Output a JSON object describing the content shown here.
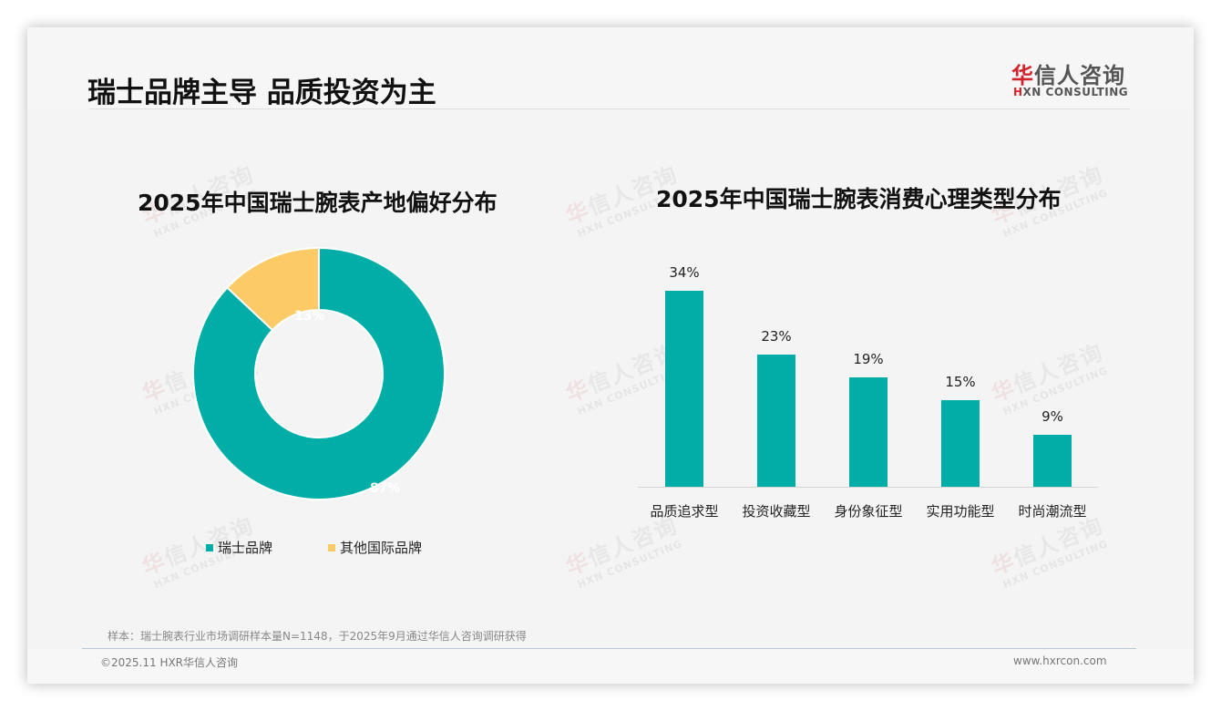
{
  "header": {
    "title": "瑞士品牌主导 品质投资为主",
    "logo": {
      "cn_first": "华",
      "cn_rest": "信人咨询",
      "en_mark": "H",
      "en_rest": "XN CONSULTING"
    }
  },
  "watermark": {
    "cn_first": "华",
    "cn_rest": "信人咨询",
    "en": "HXN CONSULTING"
  },
  "colors": {
    "teal": "#00aea7",
    "yellow": "#fcca66",
    "text": "#111111",
    "muted": "#888888"
  },
  "left_chart": {
    "title": "2025年中国瑞士腕表产地偏好分布",
    "slices": [
      {
        "label": "瑞士品牌",
        "value": 87,
        "display": "87%",
        "color": "#00aea7"
      },
      {
        "label": "其他国际品牌",
        "value": 13,
        "display": "13%",
        "color": "#fcca66"
      }
    ]
  },
  "right_chart": {
    "title": "2025年中国瑞士腕表消费心理类型分布",
    "bars": [
      {
        "label": "品质追求型",
        "value": 34,
        "display": "34%"
      },
      {
        "label": "投资收藏型",
        "value": 23,
        "display": "23%"
      },
      {
        "label": "身份象征型",
        "value": 19,
        "display": "19%"
      },
      {
        "label": "实用功能型",
        "value": 15,
        "display": "15%"
      },
      {
        "label": "时尚潮流型",
        "value": 9,
        "display": "9%"
      }
    ]
  },
  "footer": {
    "note": "样本：瑞士腕表行业市场调研样本量N=1148，于2025年9月通过华信人咨询调研获得",
    "copyright": "©2025.11 HXR华信人咨询",
    "website": "www.hxrcon.com"
  },
  "chart_data": [
    {
      "type": "pie",
      "title": "2025年中国瑞士腕表产地偏好分布",
      "categories": [
        "瑞士品牌",
        "其他国际品牌"
      ],
      "values": [
        87,
        13
      ],
      "unit": "%",
      "donut": true,
      "legend_position": "bottom",
      "colors": [
        "#00aea7",
        "#fcca66"
      ]
    },
    {
      "type": "bar",
      "title": "2025年中国瑞士腕表消费心理类型分布",
      "categories": [
        "品质追求型",
        "投资收藏型",
        "身份象征型",
        "实用功能型",
        "时尚潮流型"
      ],
      "values": [
        34,
        23,
        19,
        15,
        9
      ],
      "unit": "%",
      "xlabel": "",
      "ylabel": "",
      "ylim": [
        0,
        34
      ],
      "grid": false,
      "data_labels": true,
      "color": "#00aea7"
    }
  ]
}
